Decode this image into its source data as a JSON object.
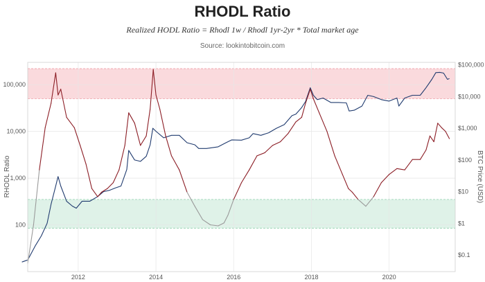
{
  "header": {
    "title": "RHODL Ratio",
    "subtitle": "Realized HODL Ratio = Rhodl 1w / Rhodl 1yr-2yr * Total market age",
    "source": "Source: lookintobitcoin.com"
  },
  "chart_data": {
    "type": "line",
    "title": "RHODL Ratio",
    "y_left_label": "RHODL Ratio",
    "y_right_label": "BTC Price (USD)",
    "y_left_scale": "log",
    "y_right_scale": "log",
    "x_range": [
      2010.7,
      2021.7
    ],
    "y_left_range": [
      10,
      300000
    ],
    "y_right_range": [
      0.03,
      120000
    ],
    "x_ticks": [
      2012,
      2014,
      2016,
      2018,
      2020
    ],
    "y_left_ticks": [
      {
        "v": 100,
        "label": "100"
      },
      {
        "v": 1000,
        "label": "1,000"
      },
      {
        "v": 10000,
        "label": "10,000"
      },
      {
        "v": 100000,
        "label": "100,000"
      }
    ],
    "y_right_ticks": [
      {
        "v": 0.1,
        "label": "$0.1"
      },
      {
        "v": 1,
        "label": "$1"
      },
      {
        "v": 10,
        "label": "$10"
      },
      {
        "v": 100,
        "label": "$100"
      },
      {
        "v": 1000,
        "label": "$1,000"
      },
      {
        "v": 10000,
        "label": "$10,000"
      },
      {
        "v": 100000,
        "label": "$100,000"
      }
    ],
    "bands": [
      {
        "name": "upper",
        "axis": "left",
        "from": 50000,
        "to": 220000,
        "fill": "#fadadd",
        "stroke": "#f0a0a8"
      },
      {
        "name": "lower",
        "axis": "left",
        "from": 85,
        "to": 350,
        "fill": "#dff2e8",
        "stroke": "#8fd0ad"
      }
    ],
    "grid": true,
    "colors": {
      "rhodl_high": "#8b1c24",
      "rhodl_low": "#9a9a9a",
      "price": "#1f3a6e",
      "grid": "#e6e6e6"
    },
    "series": [
      {
        "axis": "right",
        "color": "#1f3a6e",
        "x": [
          2010.55,
          2010.7,
          2010.9,
          2011.05,
          2011.2,
          2011.3,
          2011.42,
          2011.48,
          2011.55,
          2011.7,
          2011.85,
          2011.95,
          2012.1,
          2012.3,
          2012.5,
          2012.65,
          2012.8,
          2012.95,
          2013.1,
          2013.25,
          2013.3,
          2013.45,
          2013.6,
          2013.75,
          2013.85,
          2013.92,
          2014.0,
          2014.2,
          2014.4,
          2014.6,
          2014.8,
          2015.0,
          2015.1,
          2015.3,
          2015.6,
          2015.8,
          2015.95,
          2016.2,
          2016.4,
          2016.5,
          2016.7,
          2016.9,
          2017.1,
          2017.3,
          2017.5,
          2017.6,
          2017.75,
          2017.85,
          2017.97,
          2018.05,
          2018.15,
          2018.3,
          2018.5,
          2018.7,
          2018.9,
          2018.97,
          2019.1,
          2019.3,
          2019.45,
          2019.6,
          2019.8,
          2020.0,
          2020.2,
          2020.25,
          2020.4,
          2020.6,
          2020.8,
          2020.95,
          2021.1,
          2021.2,
          2021.3,
          2021.4,
          2021.5,
          2021.55
        ],
        "y": [
          0.06,
          0.07,
          0.2,
          0.4,
          1,
          4,
          15,
          30,
          15,
          5,
          3.5,
          3,
          5,
          5,
          7,
          10,
          11,
          13,
          15,
          50,
          200,
          100,
          90,
          130,
          300,
          1000,
          800,
          500,
          600,
          600,
          350,
          300,
          230,
          230,
          260,
          350,
          430,
          420,
          500,
          680,
          600,
          720,
          1000,
          1300,
          2500,
          2800,
          4500,
          7000,
          19000,
          11000,
          8000,
          9000,
          6500,
          6500,
          6300,
          3500,
          3700,
          5000,
          11000,
          10000,
          8000,
          7200,
          9000,
          5000,
          9000,
          11000,
          11000,
          19000,
          35000,
          57000,
          58000,
          55000,
          35000,
          37000
        ]
      },
      {
        "axis": "left",
        "color": "#8b1c24",
        "x": [
          2010.7,
          2010.85,
          2011.0,
          2011.15,
          2011.3,
          2011.42,
          2011.48,
          2011.55,
          2011.7,
          2011.9,
          2012.05,
          2012.2,
          2012.35,
          2012.5,
          2012.6,
          2012.75,
          2012.9,
          2013.05,
          2013.2,
          2013.3,
          2013.45,
          2013.6,
          2013.75,
          2013.85,
          2013.93,
          2014.0,
          2014.1,
          2014.25,
          2014.4,
          2014.6,
          2014.8,
          2015.0,
          2015.2,
          2015.4,
          2015.6,
          2015.75,
          2015.85,
          2016.0,
          2016.2,
          2016.4,
          2016.6,
          2016.8,
          2017.0,
          2017.2,
          2017.4,
          2017.6,
          2017.75,
          2017.85,
          2017.97,
          2018.05,
          2018.2,
          2018.4,
          2018.6,
          2018.8,
          2018.95,
          2019.05,
          2019.2,
          2019.4,
          2019.6,
          2019.8,
          2020.0,
          2020.2,
          2020.4,
          2020.6,
          2020.8,
          2020.95,
          2021.05,
          2021.15,
          2021.25,
          2021.35,
          2021.45,
          2021.55
        ],
        "y": [
          15,
          100,
          1500,
          12000,
          40000,
          180000,
          60000,
          80000,
          20000,
          12000,
          5000,
          2000,
          600,
          400,
          500,
          600,
          800,
          1500,
          5000,
          25000,
          15000,
          5000,
          8000,
          30000,
          210000,
          60000,
          30000,
          8000,
          3000,
          1500,
          500,
          250,
          130,
          100,
          95,
          110,
          160,
          350,
          800,
          1500,
          3000,
          3500,
          5000,
          6000,
          9000,
          16000,
          20000,
          40000,
          80000,
          50000,
          25000,
          10000,
          3000,
          1200,
          600,
          500,
          350,
          250,
          400,
          800,
          1200,
          1600,
          1500,
          2500,
          2500,
          4000,
          8000,
          6000,
          15000,
          12000,
          10000,
          7000
        ]
      }
    ]
  }
}
